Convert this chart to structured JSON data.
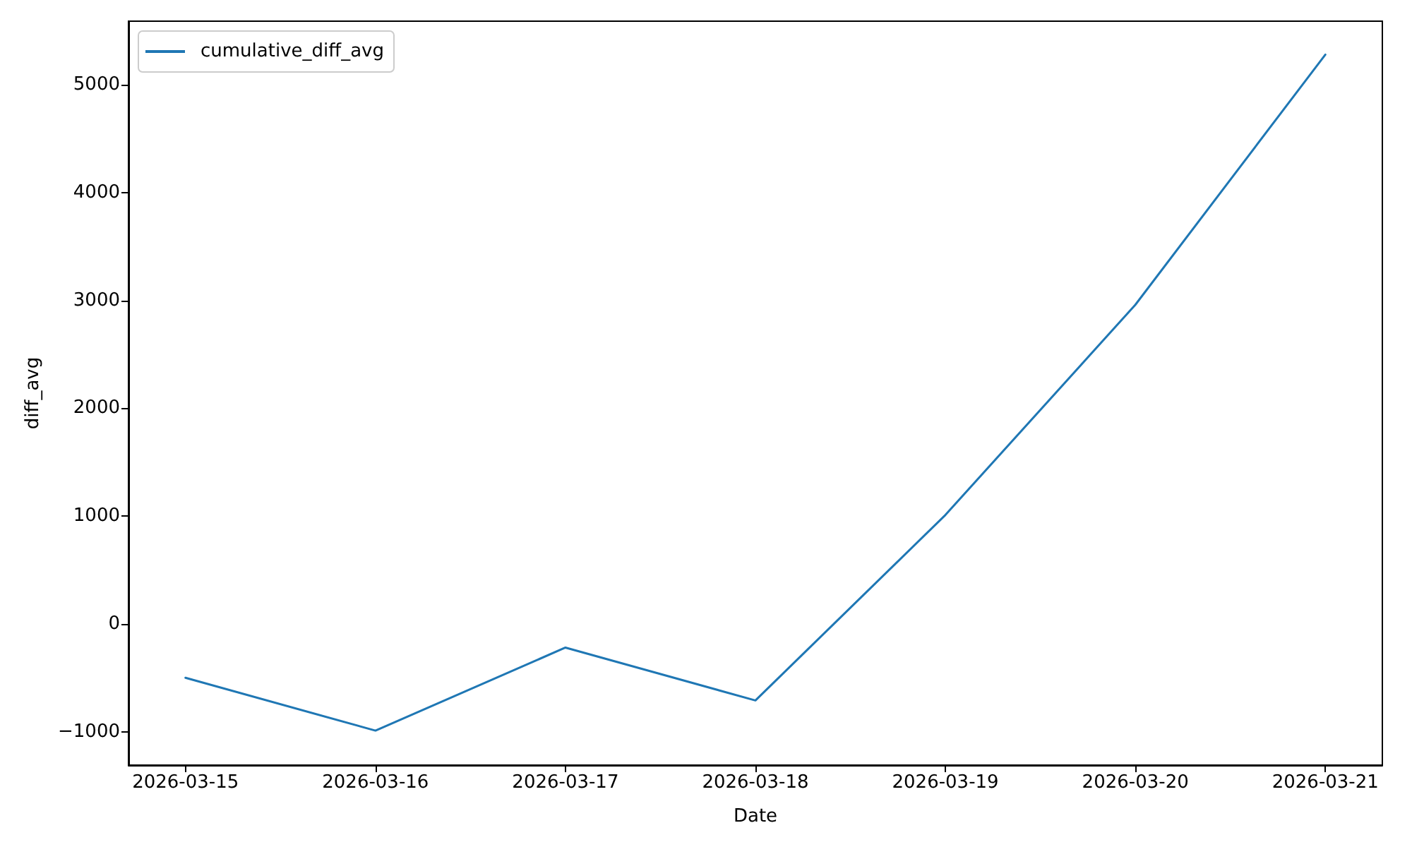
{
  "chart_data": {
    "type": "line",
    "xlabel": "Date",
    "ylabel": "diff_avg",
    "x": [
      "2026-03-15",
      "2026-03-16",
      "2026-03-17",
      "2026-03-18",
      "2026-03-19",
      "2026-03-20",
      "2026-03-21"
    ],
    "series": [
      {
        "name": "cumulative_diff_avg",
        "color": "#1f77b4",
        "values": [
          -500,
          -990,
          -220,
          -710,
          1010,
          2960,
          5280
        ]
      }
    ],
    "xlim": [
      "2026-03-14T16:48",
      "2026-03-21T07:12"
    ],
    "xticks": [
      "2026-03-15",
      "2026-03-16",
      "2026-03-17",
      "2026-03-18",
      "2026-03-19",
      "2026-03-20",
      "2026-03-21"
    ],
    "ylim": [
      -1310,
      5590
    ],
    "yticks": [
      {
        "value": -1000,
        "label": "−1000"
      },
      0,
      1000,
      2000,
      3000,
      4000,
      5000
    ],
    "grid": false,
    "legend": "top left",
    "marker": "none",
    "line_style": "solid"
  }
}
